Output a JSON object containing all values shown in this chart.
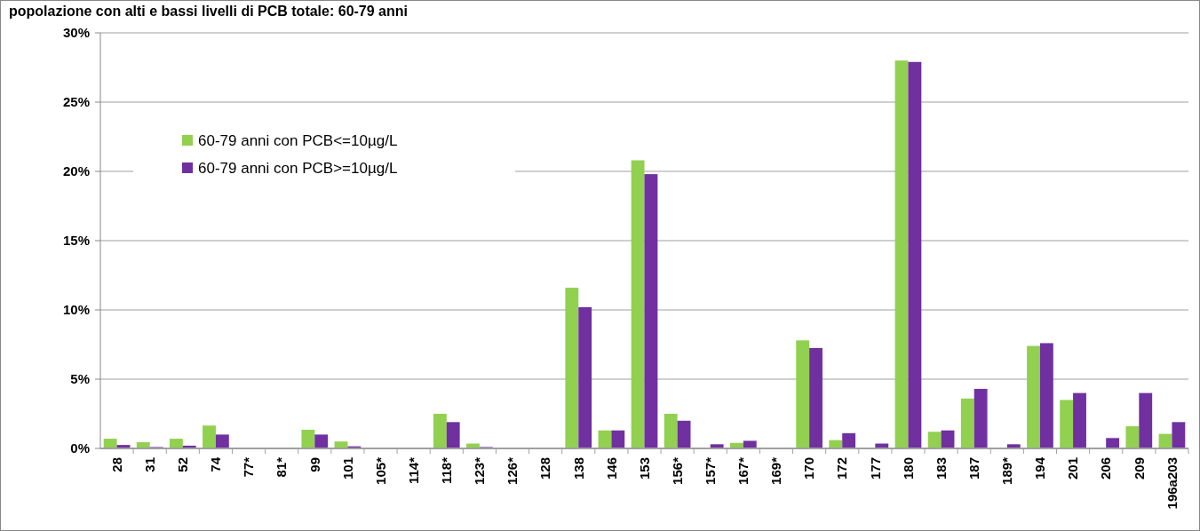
{
  "chart_data": {
    "type": "bar",
    "title": "popolazione con alti e bassi livelli di PCB totale: 60-79 anni",
    "categories": [
      "28",
      "31",
      "52",
      "74",
      "77*",
      "81*",
      "99",
      "101",
      "105*",
      "114*",
      "118*",
      "123*",
      "126*",
      "128",
      "138",
      "146",
      "153",
      "156*",
      "157*",
      "167*",
      "169*",
      "170",
      "172",
      "177",
      "180",
      "183",
      "187",
      "189*",
      "194",
      "201",
      "206",
      "209",
      "196a203"
    ],
    "series": [
      {
        "name": "60-79 anni con PCB<=10µg/L",
        "color": "#92d050",
        "values": [
          0.7,
          0.45,
          0.7,
          1.65,
          0,
          0,
          1.35,
          0.5,
          0,
          0,
          2.5,
          0.35,
          0,
          0,
          11.6,
          1.3,
          20.8,
          2.5,
          0,
          0.4,
          0,
          7.8,
          0.6,
          0,
          28.0,
          1.2,
          3.6,
          0,
          7.4,
          3.5,
          0,
          1.6,
          1.05
        ]
      },
      {
        "name": "60-79 anni con PCB>=10µg/L",
        "color": "#7030a0",
        "values": [
          0.25,
          0.1,
          0.2,
          1.0,
          0,
          0,
          1.0,
          0.15,
          0,
          0,
          1.9,
          0.1,
          0,
          0,
          10.2,
          1.3,
          19.8,
          2.0,
          0.3,
          0.55,
          0,
          7.25,
          1.1,
          0.35,
          27.9,
          1.3,
          4.3,
          0.3,
          7.6,
          4.0,
          0.75,
          4.0,
          1.9
        ]
      }
    ],
    "ylim": [
      0,
      30
    ],
    "yticks": [
      {
        "value": 0,
        "label": "0%"
      },
      {
        "value": 5,
        "label": "5%"
      },
      {
        "value": 10,
        "label": "10%"
      },
      {
        "value": 15,
        "label": "15%"
      },
      {
        "value": 20,
        "label": "20%"
      },
      {
        "value": 25,
        "label": "25%"
      },
      {
        "value": 30,
        "label": "30%"
      }
    ],
    "grid": "y",
    "legend": "top left"
  }
}
